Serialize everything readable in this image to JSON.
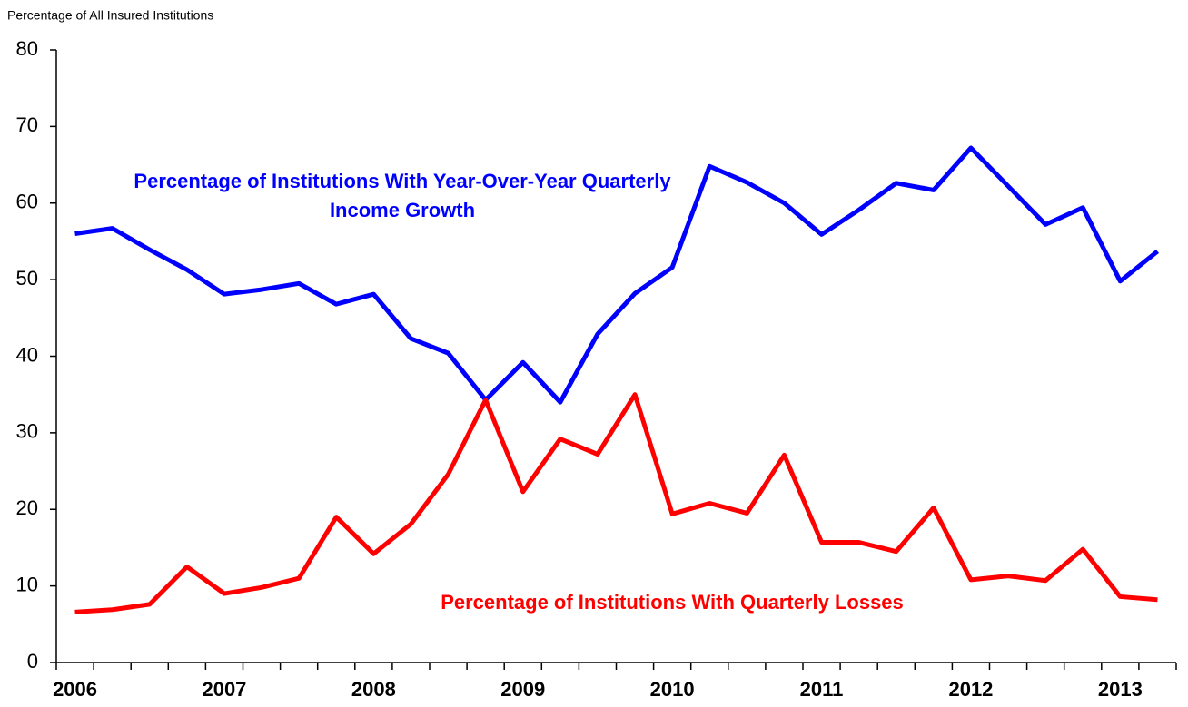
{
  "chart_data": {
    "type": "line",
    "ylabel": "Percentage of All Insured Institutions",
    "categories": [
      "2006",
      null,
      null,
      null,
      "2007",
      null,
      null,
      null,
      "2008",
      null,
      null,
      null,
      "2009",
      null,
      null,
      null,
      "2010",
      null,
      null,
      null,
      "2011",
      null,
      null,
      null,
      "2012",
      null,
      null,
      null,
      "2013",
      null
    ],
    "series": [
      {
        "name": "Percentage of Institutions With Year-Over-Year Quarterly Income Growth",
        "color": "#0000ff",
        "values": [
          56.0,
          56.7,
          53.9,
          51.3,
          48.1,
          48.7,
          49.5,
          46.8,
          48.1,
          42.3,
          40.4,
          34.3,
          39.2,
          34.0,
          42.9,
          48.2,
          51.6,
          64.8,
          62.7,
          60.0,
          55.9,
          59.1,
          62.6,
          61.7,
          67.2,
          62.2,
          57.2,
          59.4,
          49.8,
          53.7
        ]
      },
      {
        "name": "Percentage of Institutions With Quarterly Losses",
        "color": "#ff0000",
        "values": [
          6.6,
          6.9,
          7.6,
          12.5,
          9.0,
          9.8,
          11.0,
          19.0,
          14.2,
          18.1,
          24.6,
          34.3,
          22.3,
          29.2,
          27.2,
          35.0,
          19.4,
          20.8,
          19.5,
          27.1,
          15.7,
          15.7,
          14.5,
          20.2,
          10.8,
          11.3,
          10.7,
          14.8,
          8.6,
          8.2
        ]
      }
    ],
    "ylim": [
      0,
      80
    ],
    "yticks": [
      0,
      10,
      20,
      30,
      40,
      50,
      60,
      70,
      80
    ],
    "grid": false
  }
}
